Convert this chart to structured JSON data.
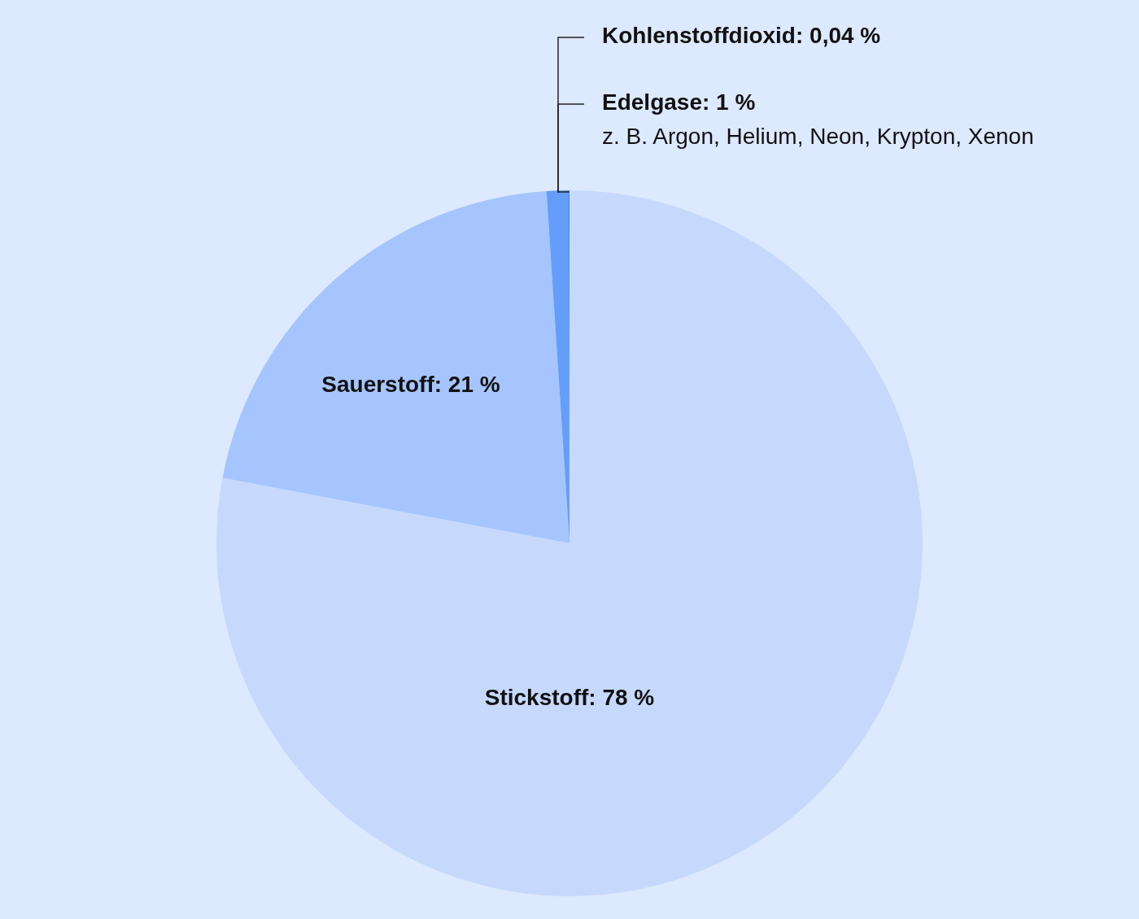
{
  "chart_data": {
    "type": "pie",
    "categories": [
      "Stickstoff",
      "Sauerstoff",
      "Edelgase",
      "Kohlenstoffdioxid"
    ],
    "values": [
      78,
      21,
      1,
      0.04
    ],
    "value_labels": [
      "78 %",
      "21 %",
      "1 %",
      "0,04 %"
    ],
    "colors": [
      "#c6d9fd",
      "#a6c5fe",
      "#649efa",
      "#3d7ff0"
    ],
    "annotations": [
      "z. B. Argon, Helium, Neon, Krypton, Xenon"
    ]
  }
}
